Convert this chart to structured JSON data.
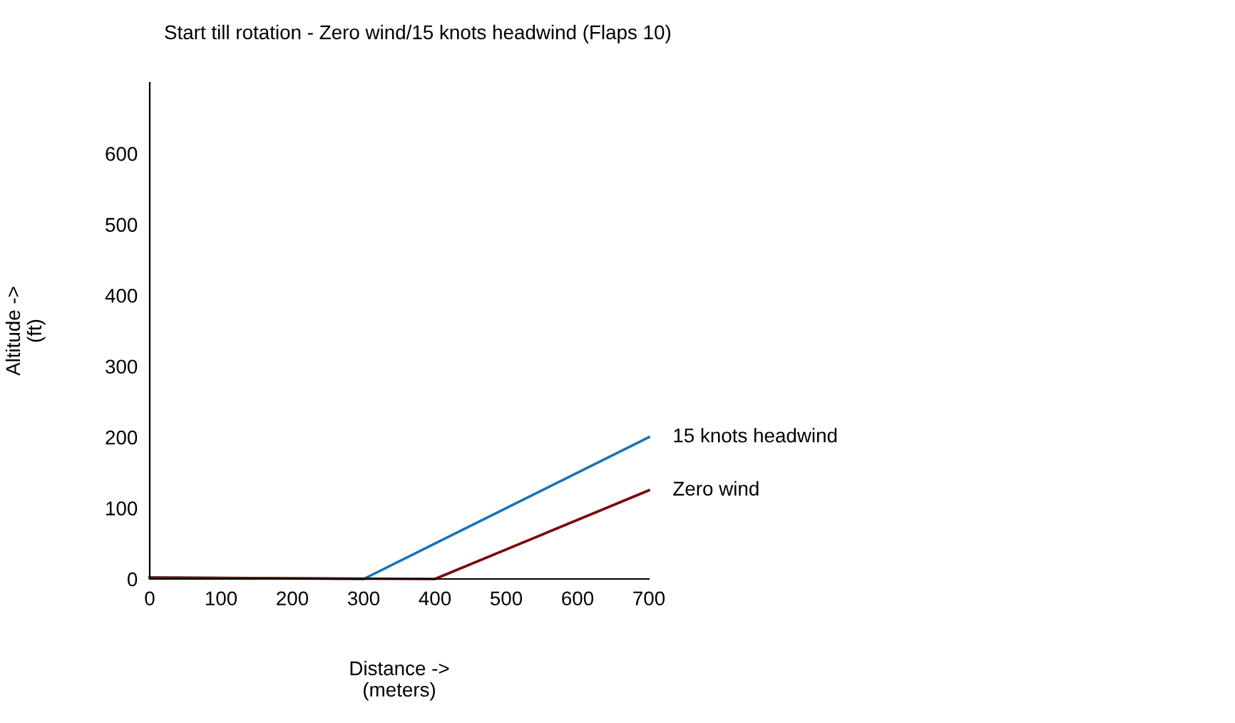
{
  "chart_data": {
    "type": "line",
    "title": "Start till rotation - Zero wind/15 knots headwind (Flaps 10)",
    "xlabel": "Distance ->\n(meters)",
    "ylabel": "Altitude ->\n(ft)",
    "series": [
      {
        "name": "15 knots headwind",
        "color": "#1a73b8",
        "x": [
          0,
          300,
          700
        ],
        "values": [
          2,
          0,
          200
        ]
      },
      {
        "name": "Zero wind",
        "color": "#7a0a0a",
        "x": [
          0,
          400,
          700
        ],
        "values": [
          2,
          0,
          125
        ]
      }
    ],
    "xlim": [
      0,
      700
    ],
    "xticks": [
      0,
      100,
      200,
      300,
      400,
      500,
      600,
      700
    ],
    "ylim": [
      0,
      700
    ],
    "yticks": [
      0,
      100,
      200,
      300,
      400,
      500,
      600
    ],
    "grid": false,
    "legend": false,
    "marker": "none",
    "line_style": "solid"
  }
}
